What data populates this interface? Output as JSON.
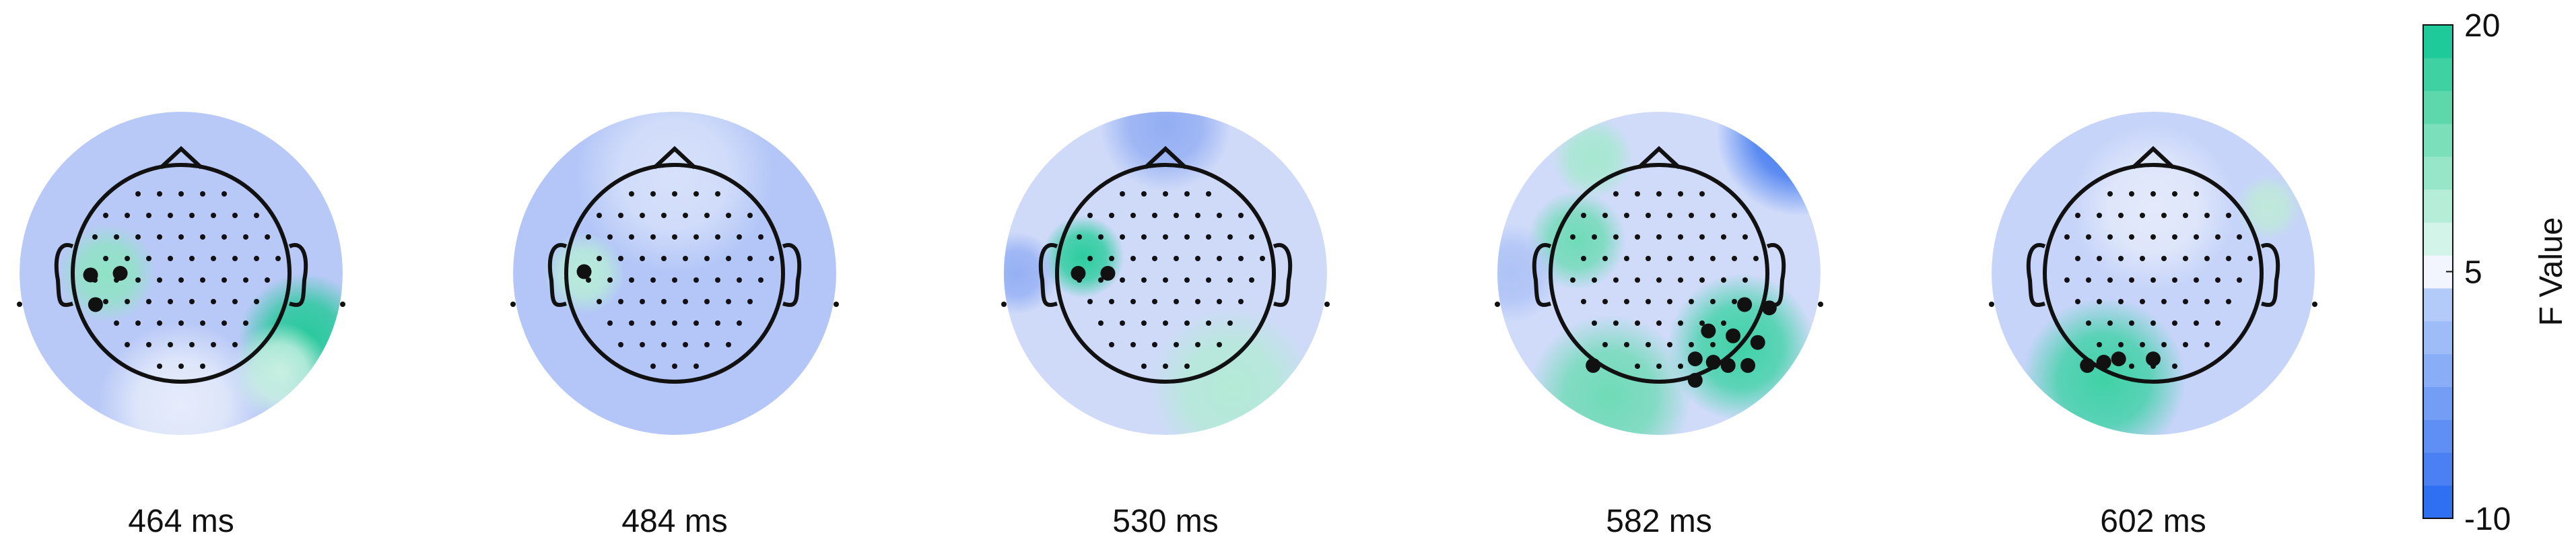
{
  "chart_data": {
    "type": "topomap",
    "maps": [
      {
        "title": "464 ms"
      },
      {
        "title": "484 ms"
      },
      {
        "title": "530 ms"
      },
      {
        "title": "582 ms"
      },
      {
        "title": "602 ms"
      }
    ],
    "colorbar": {
      "label": "F Value",
      "lim": [
        -10,
        20
      ],
      "ticks": [
        -10,
        5,
        20
      ],
      "colors": [
        "#2f6ff2",
        "#4a80f3",
        "#5f8ff4",
        "#749ef5",
        "#89adf6",
        "#9ebcf7",
        "#b3cbf9",
        "#f2f5fd",
        "#d3f4e8",
        "#b6edd9",
        "#98e6ca",
        "#7bdfbb",
        "#5dd8ac",
        "#40d1a3",
        "#1ec99a"
      ]
    }
  }
}
